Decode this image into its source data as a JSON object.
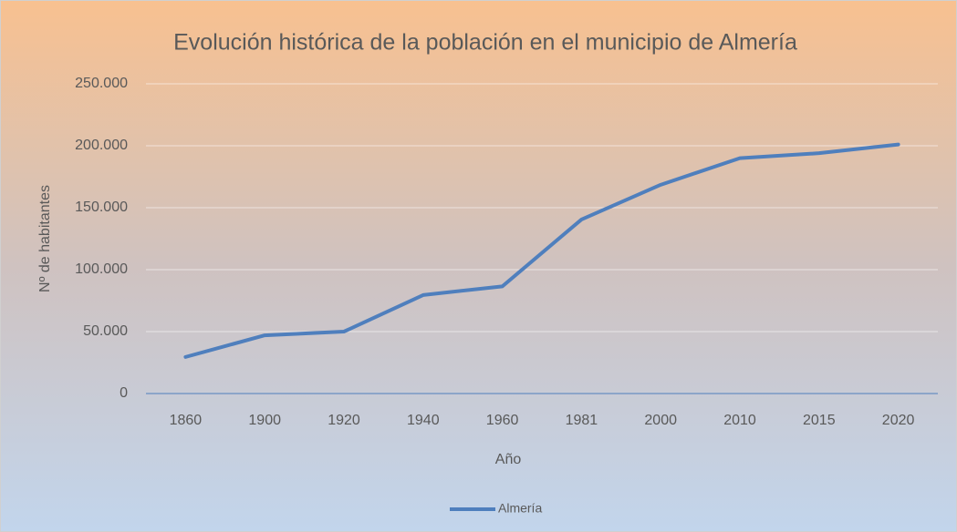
{
  "chart_data": {
    "type": "line",
    "title": "Evolución histórica de la población en el municipio de Almería",
    "xlabel": "Año",
    "ylabel": "Nº de habitantes",
    "categories": [
      "1860",
      "1900",
      "1920",
      "1940",
      "1960",
      "1981",
      "2000",
      "2010",
      "2015",
      "2020"
    ],
    "series": [
      {
        "name": "Almería",
        "color": "#4f7fbd",
        "values": [
          29500,
          47000,
          50000,
          79500,
          86500,
          140500,
          168500,
          190000,
          194000,
          201000
        ]
      }
    ],
    "ylim": [
      0,
      250000
    ],
    "yticks": [
      0,
      {
        "value": 50000,
        "label": "50.000"
      },
      {
        "value": 100000,
        "label": "100.000"
      },
      {
        "value": 150000,
        "label": "150.000"
      },
      {
        "value": 200000,
        "label": "200.000"
      },
      {
        "value": 250000,
        "label": "250.000"
      }
    ],
    "grid": true,
    "legend": "bottom"
  }
}
